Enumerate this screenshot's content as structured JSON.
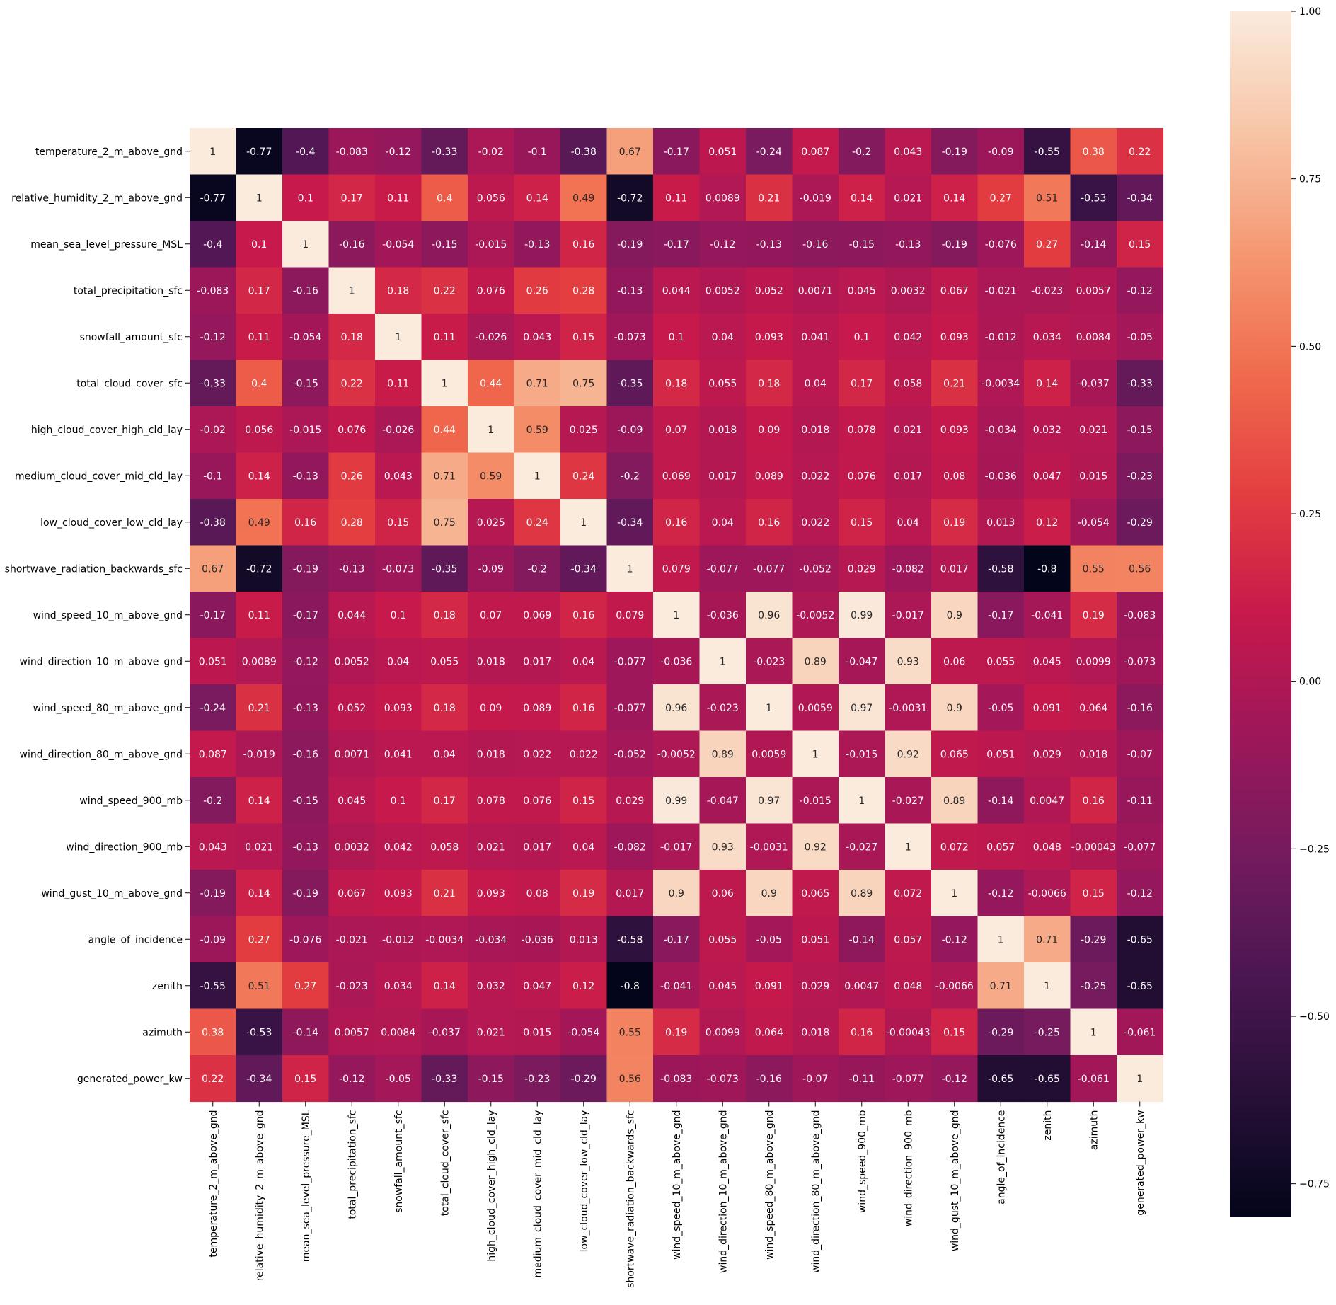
{
  "chart_data": {
    "type": "heatmap",
    "title": "",
    "xlabel": "",
    "ylabel": "",
    "variables": [
      "temperature_2_m_above_gnd",
      "relative_humidity_2_m_above_gnd",
      "mean_sea_level_pressure_MSL",
      "total_precipitation_sfc",
      "snowfall_amount_sfc",
      "total_cloud_cover_sfc",
      "high_cloud_cover_high_cld_lay",
      "medium_cloud_cover_mid_cld_lay",
      "low_cloud_cover_low_cld_lay",
      "shortwave_radiation_backwards_sfc",
      "wind_speed_10_m_above_gnd",
      "wind_direction_10_m_above_gnd",
      "wind_speed_80_m_above_gnd",
      "wind_direction_80_m_above_gnd",
      "wind_speed_900_mb",
      "wind_direction_900_mb",
      "wind_gust_10_m_above_gnd",
      "angle_of_incidence",
      "zenith",
      "azimuth",
      "generated_power_kw"
    ],
    "labels": [
      [
        "1",
        "-0.77",
        "-0.4",
        "-0.083",
        "-0.12",
        "-0.33",
        "-0.02",
        "-0.1",
        "-0.38",
        "0.67",
        "-0.17",
        "0.051",
        "-0.24",
        "0.087",
        "-0.2",
        "0.043",
        "-0.19",
        "-0.09",
        "-0.55",
        "0.38",
        "0.22"
      ],
      [
        "-0.77",
        "1",
        "0.1",
        "0.17",
        "0.11",
        "0.4",
        "0.056",
        "0.14",
        "0.49",
        "-0.72",
        "0.11",
        "0.0089",
        "0.21",
        "-0.019",
        "0.14",
        "0.021",
        "0.14",
        "0.27",
        "0.51",
        "-0.53",
        "-0.34"
      ],
      [
        "-0.4",
        "0.1",
        "1",
        "-0.16",
        "-0.054",
        "-0.15",
        "-0.015",
        "-0.13",
        "0.16",
        "-0.19",
        "-0.17",
        "-0.12",
        "-0.13",
        "-0.16",
        "-0.15",
        "-0.13",
        "-0.19",
        "-0.076",
        "0.27",
        "-0.14",
        "0.15"
      ],
      [
        "-0.083",
        "0.17",
        "-0.16",
        "1",
        "0.18",
        "0.22",
        "0.076",
        "0.26",
        "0.28",
        "-0.13",
        "0.044",
        "0.0052",
        "0.052",
        "0.0071",
        "0.045",
        "0.0032",
        "0.067",
        "-0.021",
        "-0.023",
        "0.0057",
        "-0.12"
      ],
      [
        "-0.12",
        "0.11",
        "-0.054",
        "0.18",
        "1",
        "0.11",
        "-0.026",
        "0.043",
        "0.15",
        "-0.073",
        "0.1",
        "0.04",
        "0.093",
        "0.041",
        "0.1",
        "0.042",
        "0.093",
        "-0.012",
        "0.034",
        "0.0084",
        "-0.05"
      ],
      [
        "-0.33",
        "0.4",
        "-0.15",
        "0.22",
        "0.11",
        "1",
        "0.44",
        "0.71",
        "0.75",
        "-0.35",
        "0.18",
        "0.055",
        "0.18",
        "0.04",
        "0.17",
        "0.058",
        "0.21",
        "-0.0034",
        "0.14",
        "-0.037",
        "-0.33"
      ],
      [
        "-0.02",
        "0.056",
        "-0.015",
        "0.076",
        "-0.026",
        "0.44",
        "1",
        "0.59",
        "0.025",
        "-0.09",
        "0.07",
        "0.018",
        "0.09",
        "0.018",
        "0.078",
        "0.021",
        "0.093",
        "-0.034",
        "0.032",
        "0.021",
        "-0.15"
      ],
      [
        "-0.1",
        "0.14",
        "-0.13",
        "0.26",
        "0.043",
        "0.71",
        "0.59",
        "1",
        "0.24",
        "-0.2",
        "0.069",
        "0.017",
        "0.089",
        "0.022",
        "0.076",
        "0.017",
        "0.08",
        "-0.036",
        "0.047",
        "0.015",
        "-0.23"
      ],
      [
        "-0.38",
        "0.49",
        "0.16",
        "0.28",
        "0.15",
        "0.75",
        "0.025",
        "0.24",
        "1",
        "-0.34",
        "0.16",
        "0.04",
        "0.16",
        "0.022",
        "0.15",
        "0.04",
        "0.19",
        "0.013",
        "0.12",
        "-0.054",
        "-0.29"
      ],
      [
        "0.67",
        "-0.72",
        "-0.19",
        "-0.13",
        "-0.073",
        "-0.35",
        "-0.09",
        "-0.2",
        "-0.34",
        "1",
        "0.079",
        "-0.077",
        "-0.077",
        "-0.052",
        "0.029",
        "-0.082",
        "0.017",
        "-0.58",
        "-0.8",
        "0.55",
        "0.56"
      ],
      [
        "-0.17",
        "0.11",
        "-0.17",
        "0.044",
        "0.1",
        "0.18",
        "0.07",
        "0.069",
        "0.16",
        "0.079",
        "1",
        "-0.036",
        "0.96",
        "-0.0052",
        "0.99",
        "-0.017",
        "0.9",
        "-0.17",
        "-0.041",
        "0.19",
        "-0.083"
      ],
      [
        "0.051",
        "0.0089",
        "-0.12",
        "0.0052",
        "0.04",
        "0.055",
        "0.018",
        "0.017",
        "0.04",
        "-0.077",
        "-0.036",
        "1",
        "-0.023",
        "0.89",
        "-0.047",
        "0.93",
        "0.06",
        "0.055",
        "0.045",
        "0.0099",
        "-0.073"
      ],
      [
        "-0.24",
        "0.21",
        "-0.13",
        "0.052",
        "0.093",
        "0.18",
        "0.09",
        "0.089",
        "0.16",
        "-0.077",
        "0.96",
        "-0.023",
        "1",
        "0.0059",
        "0.97",
        "-0.0031",
        "0.9",
        "-0.05",
        "0.091",
        "0.064",
        "-0.16"
      ],
      [
        "0.087",
        "-0.019",
        "-0.16",
        "0.0071",
        "0.041",
        "0.04",
        "0.018",
        "0.022",
        "0.022",
        "-0.052",
        "-0.0052",
        "0.89",
        "0.0059",
        "1",
        "-0.015",
        "0.92",
        "0.065",
        "0.051",
        "0.029",
        "0.018",
        "-0.07"
      ],
      [
        "-0.2",
        "0.14",
        "-0.15",
        "0.045",
        "0.1",
        "0.17",
        "0.078",
        "0.076",
        "0.15",
        "0.029",
        "0.99",
        "-0.047",
        "0.97",
        "-0.015",
        "1",
        "-0.027",
        "0.89",
        "-0.14",
        "0.0047",
        "0.16",
        "-0.11"
      ],
      [
        "0.043",
        "0.021",
        "-0.13",
        "0.0032",
        "0.042",
        "0.058",
        "0.021",
        "0.017",
        "0.04",
        "-0.082",
        "-0.017",
        "0.93",
        "-0.0031",
        "0.92",
        "-0.027",
        "1",
        "0.072",
        "0.057",
        "0.048",
        "-0.00043",
        "-0.077"
      ],
      [
        "-0.19",
        "0.14",
        "-0.19",
        "0.067",
        "0.093",
        "0.21",
        "0.093",
        "0.08",
        "0.19",
        "0.017",
        "0.9",
        "0.06",
        "0.9",
        "0.065",
        "0.89",
        "0.072",
        "1",
        "-0.12",
        "-0.0066",
        "0.15",
        "-0.12"
      ],
      [
        "-0.09",
        "0.27",
        "-0.076",
        "-0.021",
        "-0.012",
        "-0.0034",
        "-0.034",
        "-0.036",
        "0.013",
        "-0.58",
        "-0.17",
        "0.055",
        "-0.05",
        "0.051",
        "-0.14",
        "0.057",
        "-0.12",
        "1",
        "0.71",
        "-0.29",
        "-0.65"
      ],
      [
        "-0.55",
        "0.51",
        "0.27",
        "-0.023",
        "0.034",
        "0.14",
        "0.032",
        "0.047",
        "0.12",
        "-0.8",
        "-0.041",
        "0.045",
        "0.091",
        "0.029",
        "0.0047",
        "0.048",
        "-0.0066",
        "0.71",
        "1",
        "-0.25",
        "-0.65"
      ],
      [
        "0.38",
        "-0.53",
        "-0.14",
        "0.0057",
        "0.0084",
        "-0.037",
        "0.021",
        "0.015",
        "-0.054",
        "0.55",
        "0.19",
        "0.0099",
        "0.064",
        "0.018",
        "0.16",
        "-0.00043",
        "0.15",
        "-0.29",
        "-0.25",
        "1",
        "-0.061"
      ],
      [
        "0.22",
        "-0.34",
        "0.15",
        "-0.12",
        "-0.05",
        "-0.33",
        "-0.15",
        "-0.23",
        "-0.29",
        "0.56",
        "-0.083",
        "-0.073",
        "-0.16",
        "-0.07",
        "-0.11",
        "-0.077",
        "-0.12",
        "-0.65",
        "-0.65",
        "-0.061",
        "1"
      ]
    ],
    "colorbar": {
      "colormap": "rocket",
      "vmin": -0.8,
      "vmax": 1.0,
      "tick_values": [
        1.0,
        0.75,
        0.5,
        0.25,
        0.0,
        -0.25,
        -0.5,
        -0.75
      ],
      "tick_labels": [
        "1.00",
        "0.75",
        "0.50",
        "0.25",
        "0.00",
        "−0.25",
        "−0.50",
        "−0.75"
      ]
    }
  }
}
